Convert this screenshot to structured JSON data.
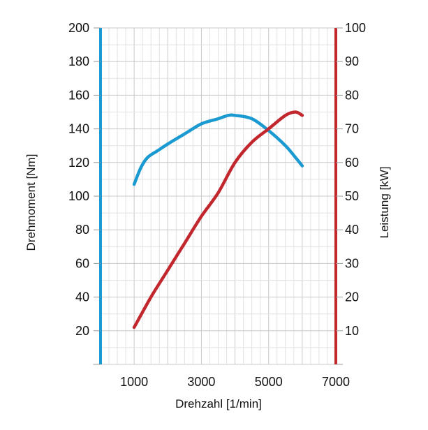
{
  "chart_data": {
    "type": "line",
    "xlabel": "Drehzahl [1/min]",
    "ylabel_left": "Drehmoment [Nm]",
    "ylabel_right": "Leistung [kW]",
    "xlim": [
      0,
      7000
    ],
    "ylim_left": [
      0,
      200
    ],
    "ylim_right": [
      0,
      100
    ],
    "x_ticks": [
      1000,
      3000,
      5000,
      7000
    ],
    "y_left_ticks": [
      20,
      40,
      60,
      80,
      100,
      120,
      140,
      160,
      180,
      200
    ],
    "y_right_ticks": [
      10,
      20,
      30,
      40,
      50,
      60,
      70,
      80,
      90,
      100
    ],
    "grid": true,
    "series": [
      {
        "axis": "left",
        "color": "#1a9ad0",
        "x": [
          1000,
          1200,
          1400,
          1700,
          2000,
          2500,
          3000,
          3500,
          3800,
          4000,
          4500,
          5000,
          5500,
          5800,
          6000
        ],
        "y": [
          107,
          117,
          123,
          127,
          131,
          137,
          143,
          146,
          148,
          148,
          146,
          139,
          130,
          123,
          118
        ]
      },
      {
        "axis": "right",
        "color": "#c1272d",
        "x": [
          1000,
          1500,
          2000,
          2500,
          3000,
          3500,
          4000,
          4500,
          5000,
          5500,
          5800,
          6000
        ],
        "y": [
          11,
          20,
          28,
          36,
          44,
          51,
          60,
          66,
          70,
          74,
          75,
          74
        ]
      }
    ],
    "axis_colors": {
      "left": "#1a9ad0",
      "right": "#c1272d"
    }
  }
}
